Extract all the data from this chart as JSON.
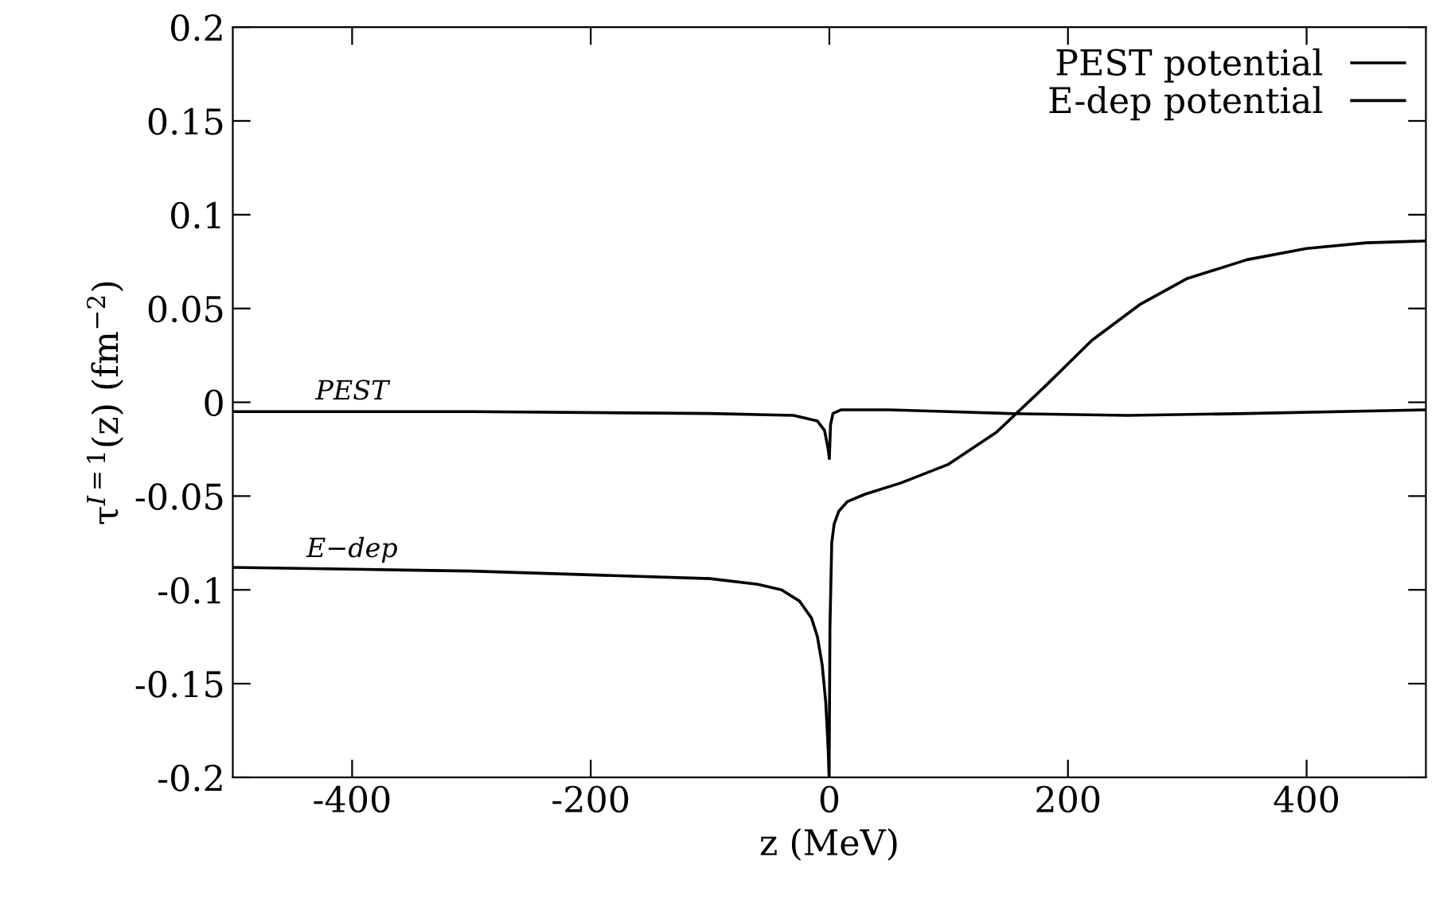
{
  "chart_data": {
    "type": "line",
    "xlabel": "z (MeV)",
    "ylabel": "τ$^{I=1}$(z) (fm$^{−2}$)",
    "xlim": [
      -500,
      500
    ],
    "ylim": [
      -0.2,
      0.2
    ],
    "xticks": [
      -400,
      -200,
      0,
      200,
      400
    ],
    "yticks": [
      -0.2,
      -0.15,
      -0.1,
      -0.05,
      0,
      0.05,
      0.1,
      0.15,
      0.2
    ],
    "grid": false,
    "legend": "top right",
    "line_style": "solid",
    "series": [
      {
        "name": "PEST potential",
        "color": "#000000",
        "x": [
          -500,
          -300,
          -100,
          -30,
          -10,
          -4,
          -1,
          0,
          1,
          3,
          10,
          50,
          100,
          150,
          250,
          350,
          500
        ],
        "values": [
          -0.005,
          -0.005,
          -0.006,
          -0.007,
          -0.01,
          -0.015,
          -0.025,
          -0.03,
          -0.012,
          -0.006,
          -0.004,
          -0.004,
          -0.005,
          -0.006,
          -0.007,
          -0.006,
          -0.004
        ]
      },
      {
        "name": "E-dep potential",
        "color": "#000000",
        "x": [
          -500,
          -400,
          -300,
          -200,
          -100,
          -60,
          -40,
          -25,
          -15,
          -10,
          -6,
          -3,
          -1,
          -0.2,
          0.5,
          2,
          4,
          8,
          15,
          30,
          60,
          100,
          140,
          180,
          220,
          260,
          300,
          350,
          400,
          450,
          500
        ],
        "values": [
          -0.088,
          -0.089,
          -0.09,
          -0.092,
          -0.094,
          -0.097,
          -0.1,
          -0.106,
          -0.115,
          -0.125,
          -0.14,
          -0.16,
          -0.185,
          -0.2,
          -0.12,
          -0.075,
          -0.065,
          -0.058,
          -0.053,
          -0.049,
          -0.043,
          -0.033,
          -0.016,
          0.008,
          0.033,
          0.052,
          0.066,
          0.076,
          0.082,
          0.085,
          0.086
        ]
      }
    ],
    "annotations": [
      {
        "text": "PEST",
        "x": -400,
        "y": -0.005
      },
      {
        "text": "E−dep",
        "x": -400,
        "y": -0.089
      }
    ]
  }
}
